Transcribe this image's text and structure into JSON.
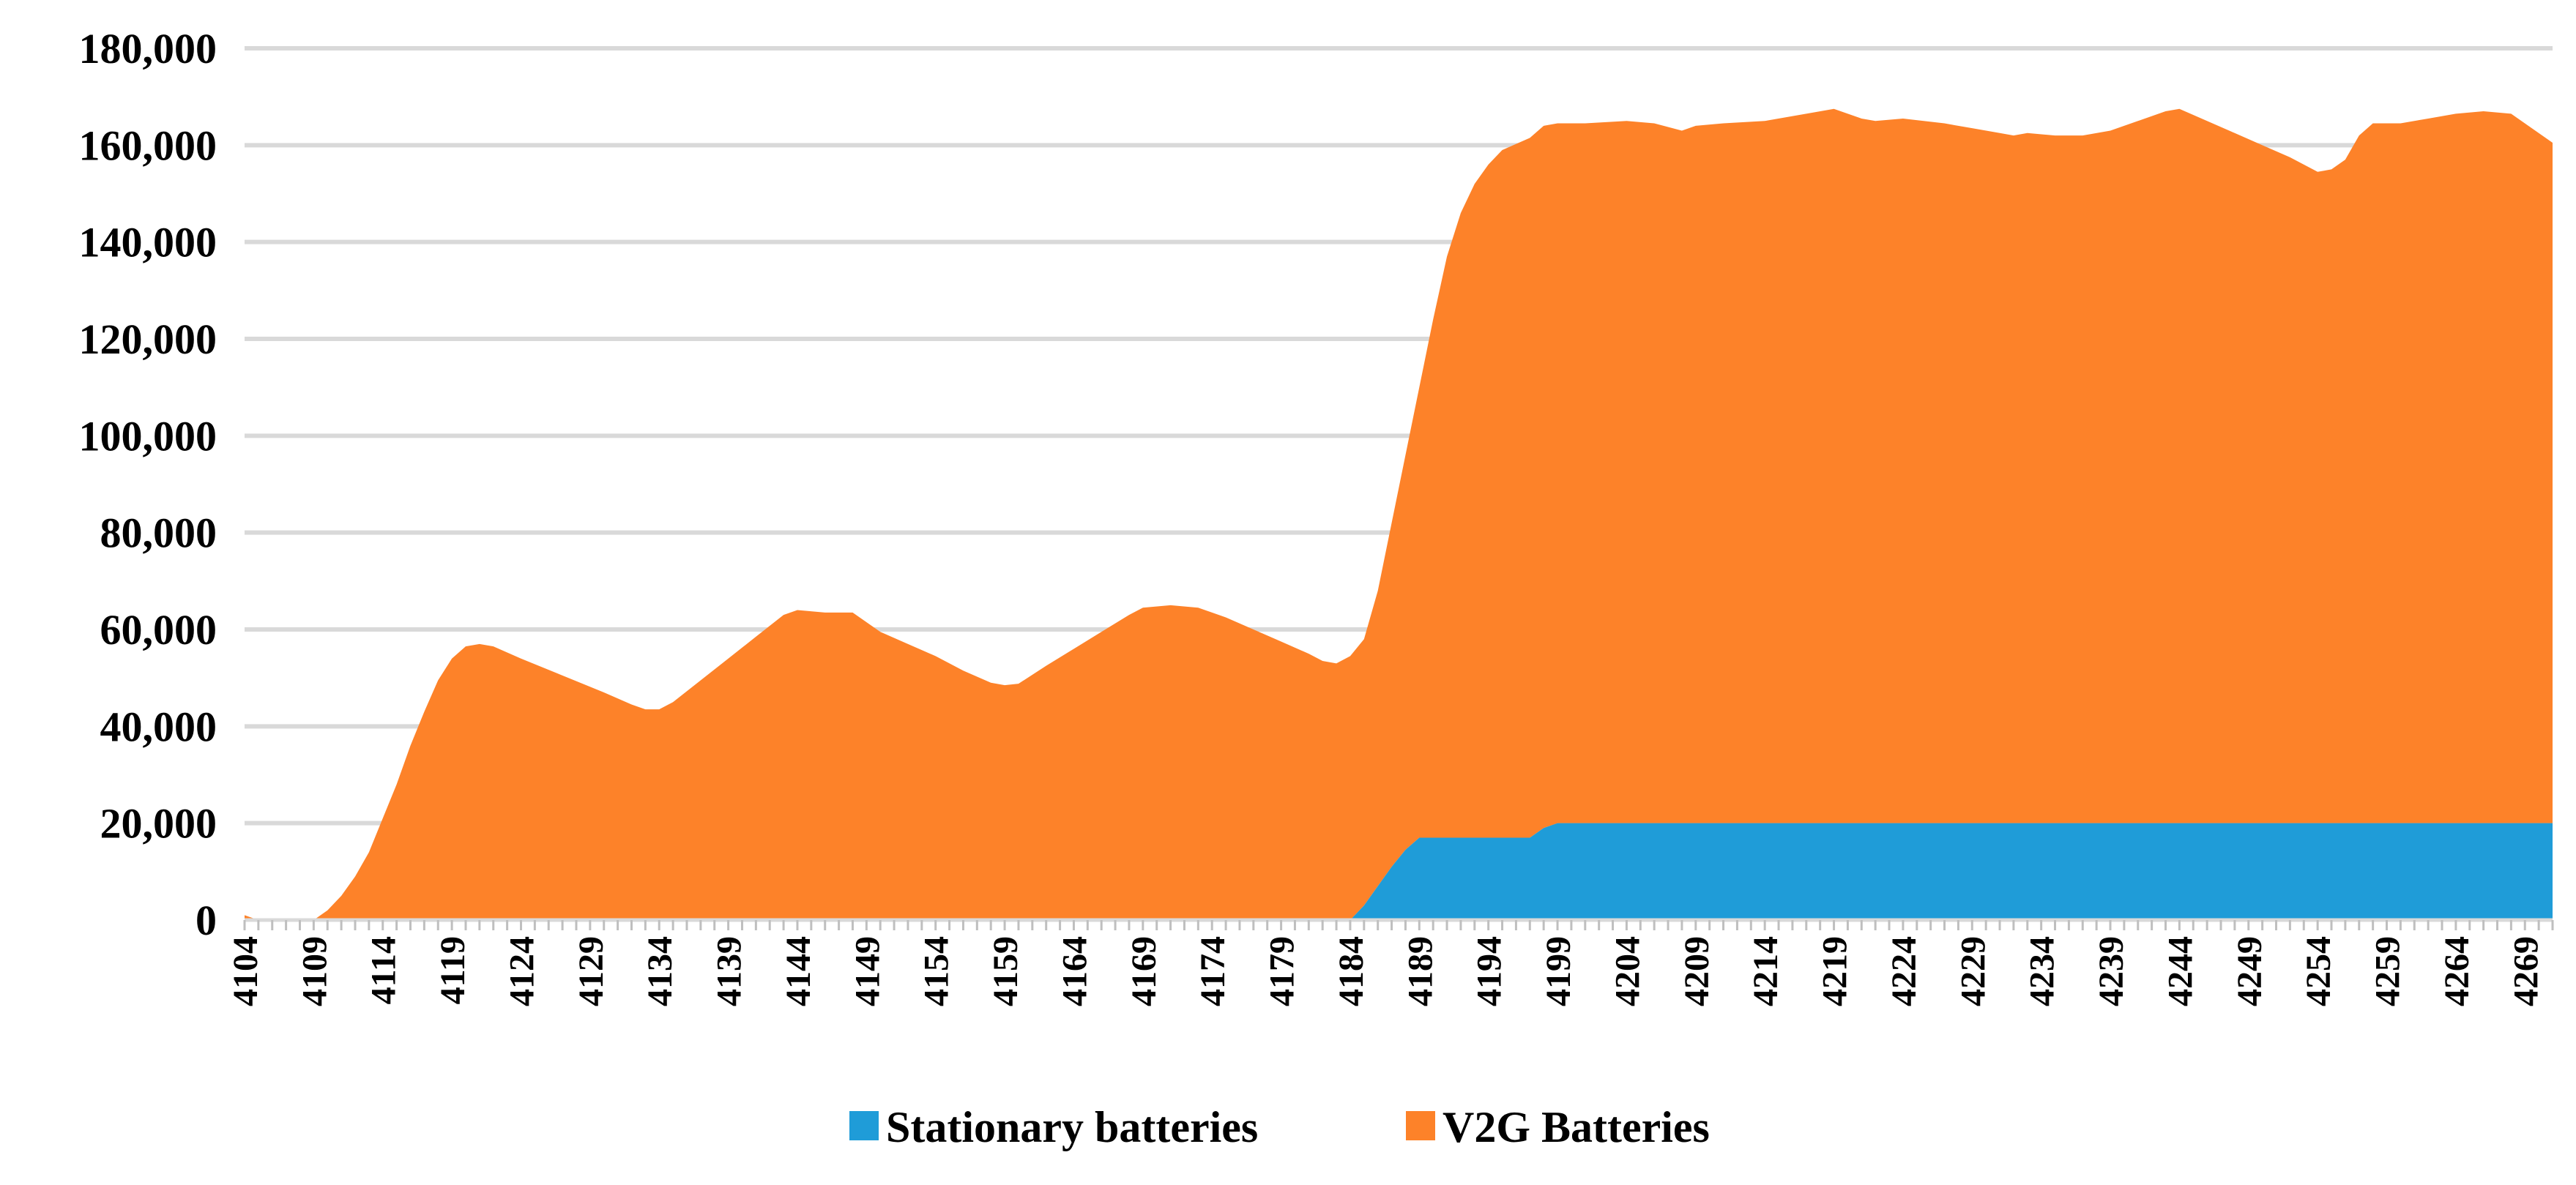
{
  "chart_data": {
    "type": "area",
    "stacked": true,
    "title": "",
    "xlabel": "",
    "ylabel": "",
    "ylim": [
      0,
      180000
    ],
    "yticks": [
      0,
      20000,
      40000,
      60000,
      80000,
      100000,
      120000,
      140000,
      160000,
      180000
    ],
    "ytick_labels": [
      "0",
      "20,000",
      "40,000",
      "60,000",
      "80,000",
      "100,000",
      "120,000",
      "140,000",
      "160,000",
      "180,000"
    ],
    "x_start": 4104,
    "x_end": 4271,
    "x_tick_labels": [
      "4104",
      "4109",
      "4114",
      "4119",
      "4124",
      "4129",
      "4134",
      "4139",
      "4144",
      "4149",
      "4154",
      "4159",
      "4164",
      "4169",
      "4174",
      "4179",
      "4184",
      "4189",
      "4194",
      "4199",
      "4204",
      "4209",
      "4214",
      "4219",
      "4224",
      "4229",
      "4234",
      "4239",
      "4244",
      "4249",
      "4254",
      "4259",
      "4264",
      "4269"
    ],
    "grid": true,
    "legend_position": "bottom",
    "series": [
      {
        "name": "Stationary batteries",
        "color": "#1f9cd8",
        "points": [
          [
            4104,
            0
          ],
          [
            4184,
            0
          ],
          [
            4185,
            3000
          ],
          [
            4186,
            7000
          ],
          [
            4187,
            11000
          ],
          [
            4188,
            14500
          ],
          [
            4189,
            17000
          ],
          [
            4190,
            17000
          ],
          [
            4196,
            17000
          ],
          [
            4197,
            17000
          ],
          [
            4198,
            19000
          ],
          [
            4199,
            20000
          ],
          [
            4271,
            20000
          ]
        ]
      },
      {
        "name": "V2G Batteries",
        "color": "#fd8229",
        "total_points": [
          [
            4104,
            1000
          ],
          [
            4105,
            0
          ],
          [
            4108,
            0
          ],
          [
            4109,
            0
          ],
          [
            4110,
            2000
          ],
          [
            4111,
            5000
          ],
          [
            4112,
            9000
          ],
          [
            4113,
            14000
          ],
          [
            4114,
            21000
          ],
          [
            4115,
            28000
          ],
          [
            4116,
            36000
          ],
          [
            4117,
            43000
          ],
          [
            4118,
            49500
          ],
          [
            4119,
            54000
          ],
          [
            4120,
            56500
          ],
          [
            4121,
            57000
          ],
          [
            4122,
            56500
          ],
          [
            4124,
            54000
          ],
          [
            4127,
            50500
          ],
          [
            4130,
            47000
          ],
          [
            4132,
            44500
          ],
          [
            4133,
            43500
          ],
          [
            4134,
            43500
          ],
          [
            4135,
            45000
          ],
          [
            4137,
            49500
          ],
          [
            4139,
            54000
          ],
          [
            4141,
            58500
          ],
          [
            4143,
            63000
          ],
          [
            4144,
            64000
          ],
          [
            4146,
            63500
          ],
          [
            4148,
            63500
          ],
          [
            4150,
            59500
          ],
          [
            4152,
            57000
          ],
          [
            4154,
            54500
          ],
          [
            4156,
            51500
          ],
          [
            4158,
            49000
          ],
          [
            4159,
            48500
          ],
          [
            4160,
            48800
          ],
          [
            4162,
            52500
          ],
          [
            4164,
            56000
          ],
          [
            4166,
            59500
          ],
          [
            4168,
            63000
          ],
          [
            4169,
            64500
          ],
          [
            4171,
            65000
          ],
          [
            4173,
            64500
          ],
          [
            4175,
            62500
          ],
          [
            4177,
            60000
          ],
          [
            4179,
            57500
          ],
          [
            4181,
            55000
          ],
          [
            4182,
            53500
          ],
          [
            4183,
            53000
          ],
          [
            4184,
            54500
          ],
          [
            4185,
            58000
          ],
          [
            4186,
            68000
          ],
          [
            4187,
            82000
          ],
          [
            4188,
            96000
          ],
          [
            4189,
            110000
          ],
          [
            4190,
            124000
          ],
          [
            4191,
            137000
          ],
          [
            4192,
            146000
          ],
          [
            4193,
            152000
          ],
          [
            4194,
            156000
          ],
          [
            4195,
            159000
          ],
          [
            4197,
            161500
          ],
          [
            4198,
            164000
          ],
          [
            4199,
            164500
          ],
          [
            4201,
            164500
          ],
          [
            4204,
            165000
          ],
          [
            4206,
            164500
          ],
          [
            4208,
            163000
          ],
          [
            4209,
            164000
          ],
          [
            4211,
            164500
          ],
          [
            4214,
            165000
          ],
          [
            4217,
            166500
          ],
          [
            4219,
            167500
          ],
          [
            4221,
            165500
          ],
          [
            4222,
            165000
          ],
          [
            4224,
            165500
          ],
          [
            4227,
            164500
          ],
          [
            4229,
            163500
          ],
          [
            4231,
            162500
          ],
          [
            4232,
            162000
          ],
          [
            4233,
            162500
          ],
          [
            4235,
            162000
          ],
          [
            4237,
            162000
          ],
          [
            4239,
            163000
          ],
          [
            4241,
            165000
          ],
          [
            4243,
            167000
          ],
          [
            4244,
            167500
          ],
          [
            4246,
            165000
          ],
          [
            4248,
            162500
          ],
          [
            4250,
            160000
          ],
          [
            4252,
            157500
          ],
          [
            4254,
            154500
          ],
          [
            4255,
            155000
          ],
          [
            4256,
            157000
          ],
          [
            4257,
            162000
          ],
          [
            4258,
            164500
          ],
          [
            4260,
            164500
          ],
          [
            4262,
            165500
          ],
          [
            4264,
            166500
          ],
          [
            4266,
            167000
          ],
          [
            4268,
            166500
          ],
          [
            4271,
            160500
          ]
        ]
      }
    ]
  }
}
